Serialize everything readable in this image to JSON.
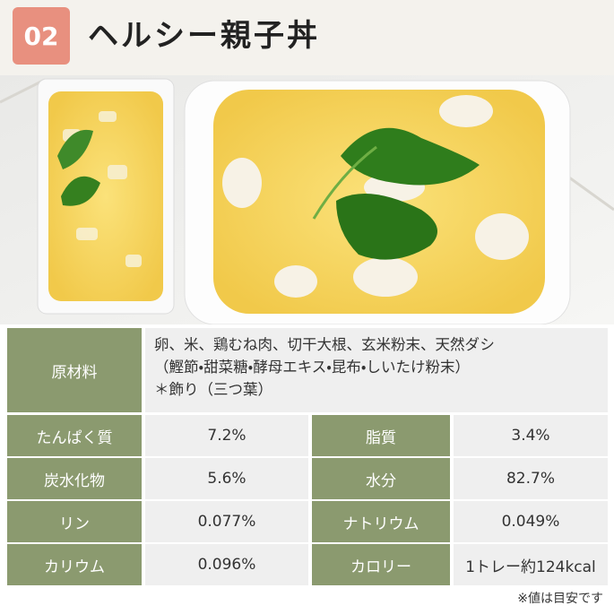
{
  "header": {
    "number": "02",
    "title": "ヘルシー親子丼"
  },
  "ingredients": {
    "label": "原材料",
    "lines": [
      "卵、米、鶏むね肉、切干大根、玄米粉末、天然ダシ",
      "（鰹節・甜菜糖・酵母エキス・昆布・しいたけ粉末）",
      "＊飾り（三つ葉）"
    ]
  },
  "table": {
    "rows": [
      [
        "たんぱく質",
        "7.2%",
        "脂質",
        "3.4%"
      ],
      [
        "炭水化物",
        "5.6%",
        "水分",
        "82.7%"
      ],
      [
        "リン",
        "0.077%",
        "ナトリウム",
        "0.049%"
      ],
      [
        "カリウム",
        "0.096%",
        "カロリー",
        "1トレー約124kcal"
      ]
    ]
  },
  "footnote": "※値は目安です"
}
